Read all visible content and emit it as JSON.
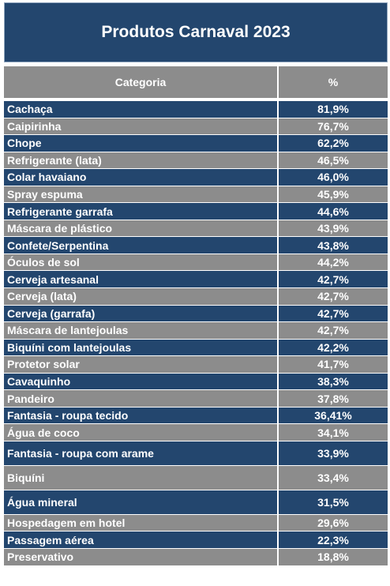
{
  "chart_data": {
    "type": "table",
    "title": "Produtos Carnaval 2023",
    "columns": [
      "Categoria",
      "%"
    ],
    "colors": {
      "title_bg": "#23466e",
      "header_bg": "#8c8c8c",
      "row_dark": "#23466e",
      "row_gray": "#8c8c8c",
      "text": "#ffffff"
    },
    "rows": [
      {
        "categoria": "Cachaça",
        "valor": "81,9%",
        "value": 81.9,
        "shade": "dark"
      },
      {
        "categoria": "Caipirinha",
        "valor": "76,7%",
        "value": 76.7,
        "shade": "gray"
      },
      {
        "categoria": "Chope",
        "valor": "62,2%",
        "value": 62.2,
        "shade": "dark"
      },
      {
        "categoria": "Refrigerante (lata)",
        "valor": "46,5%",
        "value": 46.5,
        "shade": "gray"
      },
      {
        "categoria": "Colar havaiano",
        "valor": "46,0%",
        "value": 46.0,
        "shade": "dark"
      },
      {
        "categoria": "Spray espuma",
        "valor": "45,9%",
        "value": 45.9,
        "shade": "gray"
      },
      {
        "categoria": "Refrigerante garrafa",
        "valor": "44,6%",
        "value": 44.6,
        "shade": "dark"
      },
      {
        "categoria": "Máscara de plástico",
        "valor": "43,9%",
        "value": 43.9,
        "shade": "gray"
      },
      {
        "categoria": "Confete/Serpentina",
        "valor": "43,8%",
        "value": 43.8,
        "shade": "dark"
      },
      {
        "categoria": "Óculos de sol",
        "valor": "44,2%",
        "value": 44.2,
        "shade": "gray"
      },
      {
        "categoria": "Cerveja artesanal",
        "valor": "42,7%",
        "value": 42.7,
        "shade": "dark"
      },
      {
        "categoria": "Cerveja (lata)",
        "valor": "42,7%",
        "value": 42.7,
        "shade": "gray"
      },
      {
        "categoria": "Cerveja (garrafa)",
        "valor": "42,7%",
        "value": 42.7,
        "shade": "dark"
      },
      {
        "categoria": "Máscara de lantejoulas",
        "valor": "42,7%",
        "value": 42.7,
        "shade": "gray"
      },
      {
        "categoria": "Biquíni com lantejoulas",
        "valor": "42,2%",
        "value": 42.2,
        "shade": "dark"
      },
      {
        "categoria": "Protetor solar",
        "valor": "41,7%",
        "value": 41.7,
        "shade": "gray"
      },
      {
        "categoria": "Cavaquinho",
        "valor": "38,3%",
        "value": 38.3,
        "shade": "dark"
      },
      {
        "categoria": "Pandeiro",
        "valor": "37,8%",
        "value": 37.8,
        "shade": "gray"
      },
      {
        "categoria": "Fantasia - roupa tecido",
        "valor": "36,41%",
        "value": 36.41,
        "shade": "dark"
      },
      {
        "categoria": "Água de coco",
        "valor": "34,1%",
        "value": 34.1,
        "shade": "gray"
      },
      {
        "categoria": "Fantasia - roupa com arame",
        "valor": "33,9%",
        "value": 33.9,
        "shade": "dark",
        "tall": true
      },
      {
        "categoria": "Biquíni",
        "valor": "33,4%",
        "value": 33.4,
        "shade": "gray",
        "tall": true
      },
      {
        "categoria": "Água mineral",
        "valor": "31,5%",
        "value": 31.5,
        "shade": "dark",
        "tall": true
      },
      {
        "categoria": "Hospedagem em hotel",
        "valor": "29,6%",
        "value": 29.6,
        "shade": "gray"
      },
      {
        "categoria": "Passagem aérea",
        "valor": "22,3%",
        "value": 22.3,
        "shade": "dark"
      },
      {
        "categoria": "Preservativo",
        "valor": "18,8%",
        "value": 18.8,
        "shade": "gray"
      }
    ]
  }
}
